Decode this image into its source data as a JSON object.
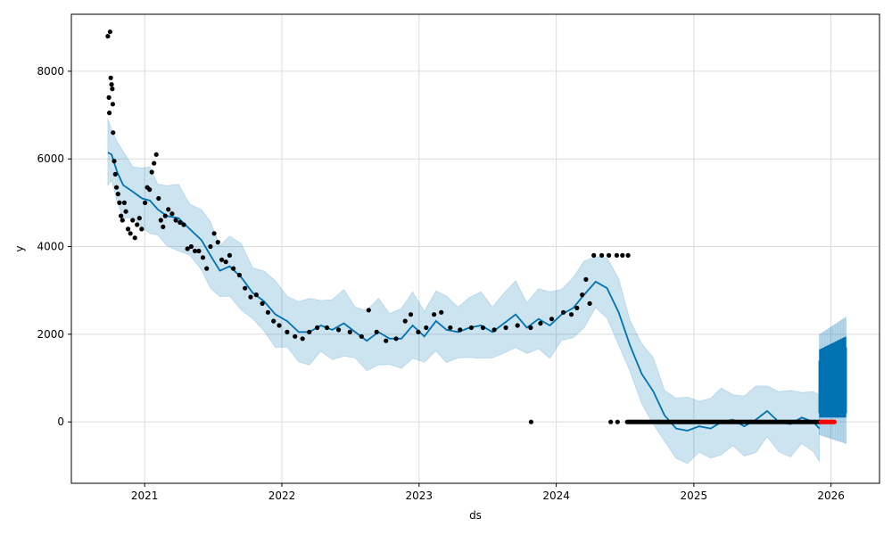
{
  "chart_data": {
    "type": "scatter",
    "title": "",
    "xlabel": "ds",
    "ylabel": "y",
    "xlim": [
      "2020-06-20",
      "2026-05-10"
    ],
    "ylim": [
      -1400,
      9300
    ],
    "x_ticks": [
      "2021-01-01",
      "2022-01-01",
      "2023-01-01",
      "2024-01-01",
      "2025-01-01",
      "2026-01-01"
    ],
    "x_tick_labels": [
      "2021",
      "2022",
      "2023",
      "2024",
      "2025",
      "2026"
    ],
    "y_ticks": [
      0,
      2000,
      4000,
      6000,
      8000
    ],
    "y_tick_labels": [
      "0",
      "2000",
      "4000",
      "6000",
      "8000"
    ],
    "grid": true,
    "colors": {
      "observed": "#000000",
      "future_points": "#ff0000",
      "forecast": "#0072B2",
      "interval": "#0072B2"
    },
    "series": [
      {
        "role": "observed",
        "points": [
          [
            "2020-09-25",
            8800
          ],
          [
            "2020-10-01",
            8900
          ],
          [
            "2020-09-28",
            7400
          ],
          [
            "2020-10-03",
            7850
          ],
          [
            "2020-10-05",
            7700
          ],
          [
            "2020-10-07",
            7600
          ],
          [
            "2020-10-08",
            7250
          ],
          [
            "2020-09-29",
            7050
          ],
          [
            "2020-10-09",
            6600
          ],
          [
            "2020-10-12",
            5950
          ],
          [
            "2020-10-15",
            5650
          ],
          [
            "2020-10-18",
            5350
          ],
          [
            "2020-10-22",
            5200
          ],
          [
            "2020-10-26",
            5000
          ],
          [
            "2020-10-30",
            4700
          ],
          [
            "2020-11-03",
            4600
          ],
          [
            "2020-11-08",
            5000
          ],
          [
            "2020-11-12",
            4800
          ],
          [
            "2020-11-18",
            4400
          ],
          [
            "2020-11-24",
            4300
          ],
          [
            "2020-11-30",
            4600
          ],
          [
            "2020-12-06",
            4200
          ],
          [
            "2020-12-12",
            4500
          ],
          [
            "2020-12-18",
            4650
          ],
          [
            "2020-12-24",
            4400
          ],
          [
            "2021-01-02",
            5000
          ],
          [
            "2021-01-08",
            5350
          ],
          [
            "2021-01-14",
            5300
          ],
          [
            "2021-01-20",
            5700
          ],
          [
            "2021-01-26",
            5900
          ],
          [
            "2021-02-01",
            6100
          ],
          [
            "2021-02-07",
            5100
          ],
          [
            "2021-02-13",
            4600
          ],
          [
            "2021-02-19",
            4450
          ],
          [
            "2021-02-25",
            4700
          ],
          [
            "2021-03-05",
            4850
          ],
          [
            "2021-03-15",
            4750
          ],
          [
            "2021-03-25",
            4600
          ],
          [
            "2021-04-05",
            4550
          ],
          [
            "2021-04-15",
            4500
          ],
          [
            "2021-04-25",
            3950
          ],
          [
            "2021-05-05",
            4000
          ],
          [
            "2021-05-15",
            3900
          ],
          [
            "2021-05-25",
            3900
          ],
          [
            "2021-06-05",
            3750
          ],
          [
            "2021-06-15",
            3500
          ],
          [
            "2021-06-25",
            4000
          ],
          [
            "2021-07-05",
            4300
          ],
          [
            "2021-07-15",
            4100
          ],
          [
            "2021-07-25",
            3700
          ],
          [
            "2021-08-05",
            3650
          ],
          [
            "2021-08-15",
            3800
          ],
          [
            "2021-08-25",
            3500
          ],
          [
            "2021-09-10",
            3350
          ],
          [
            "2021-09-25",
            3050
          ],
          [
            "2021-10-10",
            2850
          ],
          [
            "2021-10-25",
            2900
          ],
          [
            "2021-11-10",
            2700
          ],
          [
            "2021-11-25",
            2500
          ],
          [
            "2021-12-10",
            2300
          ],
          [
            "2021-12-25",
            2200
          ],
          [
            "2022-01-15",
            2050
          ],
          [
            "2022-02-05",
            1950
          ],
          [
            "2022-02-25",
            1900
          ],
          [
            "2022-03-15",
            2050
          ],
          [
            "2022-04-05",
            2150
          ],
          [
            "2022-05-01",
            2150
          ],
          [
            "2022-06-01",
            2100
          ],
          [
            "2022-07-01",
            2050
          ],
          [
            "2022-08-01",
            1950
          ],
          [
            "2022-08-20",
            2550
          ],
          [
            "2022-09-10",
            2050
          ],
          [
            "2022-10-05",
            1850
          ],
          [
            "2022-11-01",
            1900
          ],
          [
            "2022-11-25",
            2300
          ],
          [
            "2022-12-10",
            2450
          ],
          [
            "2022-12-30",
            2050
          ],
          [
            "2023-01-20",
            2150
          ],
          [
            "2023-02-10",
            2450
          ],
          [
            "2023-03-01",
            2500
          ],
          [
            "2023-03-25",
            2150
          ],
          [
            "2023-04-20",
            2100
          ],
          [
            "2023-05-20",
            2150
          ],
          [
            "2023-06-20",
            2150
          ],
          [
            "2023-07-20",
            2100
          ],
          [
            "2023-08-20",
            2150
          ],
          [
            "2023-09-20",
            2200
          ],
          [
            "2023-10-26",
            0
          ],
          [
            "2023-10-25",
            2150
          ],
          [
            "2023-11-20",
            2250
          ],
          [
            "2023-12-20",
            2350
          ],
          [
            "2024-01-20",
            2500
          ],
          [
            "2024-02-10",
            2450
          ],
          [
            "2024-02-25",
            2600
          ],
          [
            "2024-03-10",
            2900
          ],
          [
            "2024-03-20",
            3250
          ],
          [
            "2024-03-30",
            2700
          ],
          [
            "2024-04-10",
            3800
          ],
          [
            "2024-05-01",
            3800
          ],
          [
            "2024-05-20",
            3800
          ],
          [
            "2024-06-10",
            3800
          ],
          [
            "2024-06-25",
            3800
          ],
          [
            "2024-07-10",
            3800
          ],
          [
            "2024-05-25",
            0
          ],
          [
            "2024-06-12",
            0
          ]
        ],
        "zero_run": [
          "2024-07-08",
          "2025-12-05",
          0
        ]
      },
      {
        "role": "future_points",
        "zero_run": [
          "2025-12-05",
          "2026-01-10",
          0
        ]
      },
      {
        "role": "forecast",
        "points": [
          [
            "2020-09-25",
            6150
          ],
          [
            "2020-10-05",
            6100
          ],
          [
            "2020-10-20",
            5700
          ],
          [
            "2020-11-05",
            5400
          ],
          [
            "2020-12-01",
            5250
          ],
          [
            "2020-12-25",
            5100
          ],
          [
            "2021-01-15",
            5050
          ],
          [
            "2021-02-05",
            4850
          ],
          [
            "2021-03-01",
            4700
          ],
          [
            "2021-04-01",
            4650
          ],
          [
            "2021-05-01",
            4400
          ],
          [
            "2021-06-01",
            4150
          ],
          [
            "2021-06-25",
            3800
          ],
          [
            "2021-07-20",
            3450
          ],
          [
            "2021-08-15",
            3550
          ],
          [
            "2021-09-15",
            3300
          ],
          [
            "2021-10-15",
            2950
          ],
          [
            "2021-11-15",
            2750
          ],
          [
            "2021-12-15",
            2450
          ],
          [
            "2022-01-15",
            2300
          ],
          [
            "2022-02-15",
            2050
          ],
          [
            "2022-03-15",
            2050
          ],
          [
            "2022-04-15",
            2200
          ],
          [
            "2022-05-15",
            2100
          ],
          [
            "2022-06-15",
            2250
          ],
          [
            "2022-07-15",
            2050
          ],
          [
            "2022-08-15",
            1850
          ],
          [
            "2022-09-15",
            2050
          ],
          [
            "2022-10-15",
            1900
          ],
          [
            "2022-11-15",
            1900
          ],
          [
            "2022-12-15",
            2200
          ],
          [
            "2023-01-15",
            1950
          ],
          [
            "2023-02-15",
            2300
          ],
          [
            "2023-03-15",
            2100
          ],
          [
            "2023-04-15",
            2050
          ],
          [
            "2023-05-15",
            2150
          ],
          [
            "2023-06-15",
            2200
          ],
          [
            "2023-07-15",
            2050
          ],
          [
            "2023-08-15",
            2250
          ],
          [
            "2023-09-15",
            2450
          ],
          [
            "2023-10-15",
            2150
          ],
          [
            "2023-11-15",
            2350
          ],
          [
            "2023-12-15",
            2200
          ],
          [
            "2024-01-15",
            2450
          ],
          [
            "2024-02-15",
            2600
          ],
          [
            "2024-03-15",
            2900
          ],
          [
            "2024-04-15",
            3200
          ],
          [
            "2024-05-15",
            3050
          ],
          [
            "2024-06-15",
            2500
          ],
          [
            "2024-07-15",
            1750
          ],
          [
            "2024-08-15",
            1100
          ],
          [
            "2024-09-15",
            700
          ],
          [
            "2024-10-15",
            150
          ],
          [
            "2024-11-15",
            -150
          ],
          [
            "2024-12-15",
            -200
          ],
          [
            "2025-01-15",
            -100
          ],
          [
            "2025-02-15",
            -150
          ],
          [
            "2025-03-15",
            0
          ],
          [
            "2025-04-15",
            50
          ],
          [
            "2025-05-15",
            -100
          ],
          [
            "2025-06-15",
            50
          ],
          [
            "2025-07-15",
            250
          ],
          [
            "2025-08-15",
            0
          ],
          [
            "2025-09-15",
            -50
          ],
          [
            "2025-10-15",
            100
          ],
          [
            "2025-11-15",
            0
          ],
          [
            "2025-12-01",
            -150
          ]
        ]
      },
      {
        "role": "interval",
        "band_halfwidth": 650,
        "future_uncertainty": {
          "start": "2025-12-01",
          "end": "2026-02-10",
          "lower": -500,
          "upper": 2400,
          "fill_lower": 200,
          "fill_upper": 1700
        }
      }
    ]
  }
}
